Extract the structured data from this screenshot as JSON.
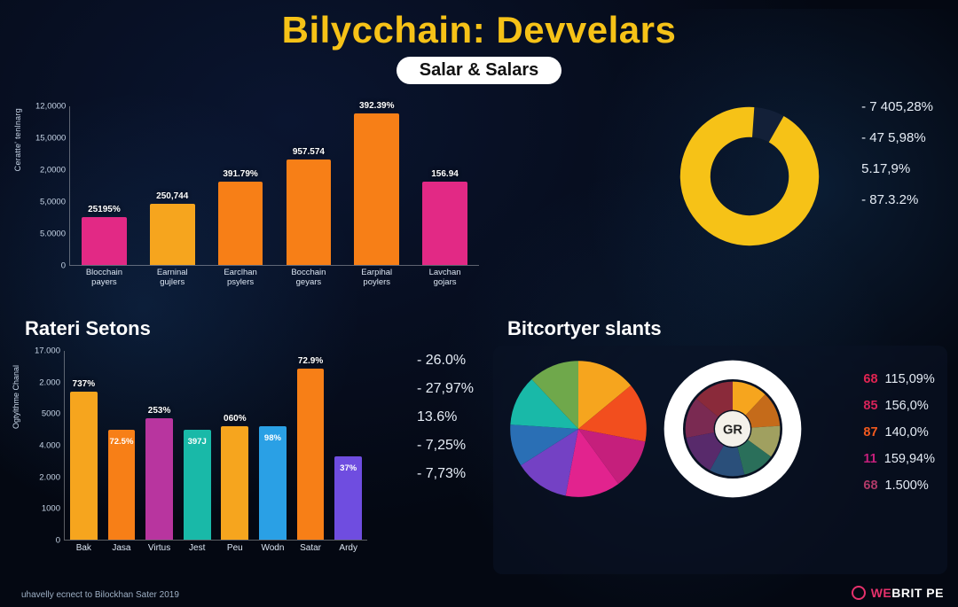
{
  "header": {
    "title_part1": "Bilycchain:",
    "title_part2": "Devvelars",
    "subtitle": "Salar & Salars"
  },
  "chart1": {
    "type": "bar",
    "ylabel": "Ceratte' tenlnarg",
    "yticks": [
      "12,0000",
      "15,0000",
      "2,0000",
      "5,0000",
      "5.0000",
      "0"
    ],
    "ymax": 16000,
    "categories": [
      "Blocchain payers",
      "Earninal gujlers",
      "Earclhan psylers",
      "Bocchain geyars",
      "Earpihal poylers",
      "Lavchan gojars"
    ],
    "values": [
      4800,
      6100,
      8400,
      10600,
      15200,
      8400
    ],
    "value_labels": [
      "25195%",
      "250,744",
      "391.79%",
      "957.574",
      "392.39%",
      "156.94"
    ],
    "bar_colors": [
      "#e22985",
      "#f6a51e",
      "#f77f17",
      "#f77f17",
      "#f77f17",
      "#e22985"
    ],
    "background": "transparent",
    "grid_color": "rgba(255,255,255,0.18)"
  },
  "donut": {
    "type": "donut",
    "ring_color": "#f6c217",
    "ring_bg": "#132038",
    "inner_ratio": 0.58,
    "legend": [
      "- 7 405,28%",
      "- 47 5,98%",
      "  5.17,9%",
      "- 87.3.2%"
    ]
  },
  "panel_left_title": "Rateri Setons",
  "panel_right_title": "Bitcortyer slants",
  "chart3": {
    "type": "bar",
    "ylabel": "Ogtylthme Chanal",
    "yticks": [
      "17.000",
      "2.000",
      "5000",
      "4.000",
      "2.000",
      "1000",
      "0"
    ],
    "ymax_rel": 1.0,
    "categories": [
      "Bak",
      "Jasa",
      "Virtus",
      "Jest",
      "Peu",
      "Wodn",
      "Satar",
      "Ardy"
    ],
    "heights": [
      0.78,
      0.58,
      0.64,
      0.58,
      0.6,
      0.6,
      0.9,
      0.44
    ],
    "top_labels": [
      "737%",
      "",
      "253%",
      "",
      "060%",
      "",
      "72.9%",
      ""
    ],
    "inner_labels": [
      "",
      "72.5%",
      "",
      "397J",
      "",
      "98%",
      "",
      "37%"
    ],
    "bar_colors": [
      "#f6a51e",
      "#f77f17",
      "#b8359f",
      "#19b9a8",
      "#f6a51e",
      "#2aa0e5",
      "#f77f17",
      "#6f4de0"
    ],
    "side_values": [
      "- 26.0%",
      "- 27,97%",
      "  13.6%",
      "- 7,25%",
      "- 7,73%"
    ]
  },
  "chart4": {
    "pie": {
      "type": "pie",
      "slices": [
        {
          "v": 14,
          "c": "#f6a51e"
        },
        {
          "v": 14,
          "c": "#f24e1e"
        },
        {
          "v": 12,
          "c": "#c51f7c"
        },
        {
          "v": 13,
          "c": "#e2238e"
        },
        {
          "v": 13,
          "c": "#7441c4"
        },
        {
          "v": 10,
          "c": "#2a6fb5"
        },
        {
          "v": 12,
          "c": "#19b9a8"
        },
        {
          "v": 12,
          "c": "#6fa84b"
        }
      ]
    },
    "ringed": {
      "type": "donut",
      "center_label": "GR",
      "ring_color": "#ffffff",
      "slices": [
        {
          "v": 12,
          "c": "#f6a51e"
        },
        {
          "v": 12,
          "c": "#c56b1a"
        },
        {
          "v": 11,
          "c": "#a0a060"
        },
        {
          "v": 11,
          "c": "#2a6f5a"
        },
        {
          "v": 12,
          "c": "#2a4f7a"
        },
        {
          "v": 14,
          "c": "#582a6b"
        },
        {
          "v": 14,
          "c": "#7a2a52"
        },
        {
          "v": 14,
          "c": "#8a2a3a"
        }
      ]
    },
    "legend": [
      {
        "n": "68",
        "v": "115,09%",
        "c": "#e22452"
      },
      {
        "n": "85",
        "v": "156,0%",
        "c": "#d8235a"
      },
      {
        "n": "87",
        "v": "140,0%",
        "c": "#f35a1e"
      },
      {
        "n": "11",
        "v": "159,94%",
        "c": "#c51f7c"
      },
      {
        "n": "68",
        "v": "1.500%",
        "c": "#b03a68"
      }
    ]
  },
  "footer": "uhavelly ecnect to Bilockhan Sater 2019",
  "brand": {
    "text1": "WE",
    "text2": "BRIT",
    "text3": " PE"
  }
}
